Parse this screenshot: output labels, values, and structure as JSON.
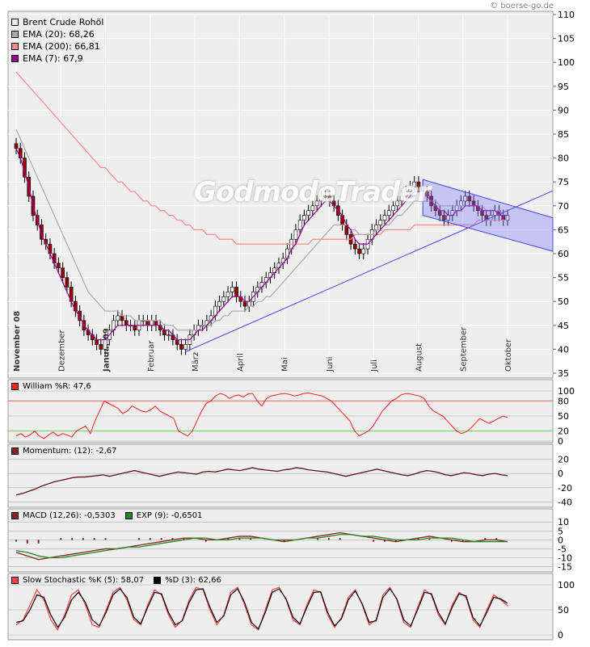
{
  "copyright": "© boerse-go.de",
  "watermark": "GodmodeTrader",
  "legend": {
    "instrument": {
      "label": "Brent Crude Rohöl",
      "color": "#eeeeee"
    },
    "ema20": {
      "label": "EMA (20): 68,26",
      "color": "#aaaaaa"
    },
    "ema200": {
      "label": "EMA (200): 66,81",
      "color": "#ff8888"
    },
    "ema7": {
      "label": "EMA (7): 67,9",
      "color": "#990099"
    }
  },
  "panels": {
    "williams": {
      "label": "William %R: 47,6",
      "color": "#ff2222"
    },
    "momentum": {
      "label": "Momentum: (12): -2,67",
      "color": "#882222"
    },
    "macd": {
      "label": "MACD (12,26): -0,5303",
      "color": "#882222"
    },
    "exp": {
      "label": "EXP (9): -0,6501",
      "color": "#228822"
    },
    "stoch_k": {
      "label": "Slow Stochastic %K (5): 58,07",
      "color": "#ff4444"
    },
    "stoch_d": {
      "label": "%D (3): 62,66",
      "color": "#000000"
    }
  },
  "chart_data": [
    {
      "type": "candlestick",
      "title": "Brent Crude Rohöl",
      "x_labels": [
        "November 08",
        "Dezember",
        "Januar 09",
        "Februar",
        "März",
        "April",
        "Mai",
        "Juni",
        "Juli",
        "August",
        "September",
        "Oktober"
      ],
      "x_label_index": [
        0,
        12,
        24,
        36,
        48,
        60,
        72,
        84,
        96,
        108,
        120,
        132
      ],
      "yticks": [
        35,
        40,
        45,
        50,
        55,
        60,
        65,
        70,
        75,
        80,
        85,
        90,
        95,
        100,
        105,
        110
      ],
      "ylim": [
        35,
        110
      ],
      "close": [
        82,
        80,
        76,
        72,
        68,
        66,
        63,
        62,
        60,
        58,
        57,
        55,
        53,
        50,
        48,
        46,
        44,
        43,
        42,
        41,
        40,
        42,
        44,
        46,
        47,
        46,
        45,
        45,
        44,
        46,
        46,
        45,
        46,
        45,
        44,
        43,
        43,
        42,
        41,
        40,
        41,
        43,
        44,
        45,
        45,
        46,
        47,
        49,
        50,
        51,
        52,
        53,
        51,
        50,
        49,
        50,
        52,
        53,
        54,
        55,
        56,
        57,
        58,
        59,
        61,
        63,
        65,
        67,
        68,
        69,
        70,
        71,
        72,
        72,
        71,
        70,
        68,
        66,
        64,
        62,
        61,
        60,
        61,
        63,
        65,
        66,
        67,
        68,
        69,
        70,
        71,
        72,
        73,
        74,
        75,
        74,
        73,
        72,
        70,
        69,
        68,
        67,
        68,
        69,
        70,
        71,
        72,
        71,
        70,
        69,
        68,
        67,
        68,
        69,
        68,
        67,
        68
      ],
      "ema20": [
        86,
        84,
        82,
        80,
        78,
        76,
        74,
        72,
        70,
        68,
        66,
        64,
        62,
        60,
        58,
        56,
        54,
        52,
        51,
        50,
        49,
        48,
        48,
        48,
        48,
        47,
        47,
        47,
        46,
        46,
        46,
        46,
        46,
        46,
        46,
        45,
        45,
        45,
        44,
        44,
        44,
        44,
        44,
        44,
        45,
        45,
        45,
        46,
        46,
        47,
        47,
        48,
        48,
        48,
        48,
        49,
        49,
        50,
        50,
        51,
        51,
        52,
        53,
        54,
        55,
        56,
        57,
        58,
        59,
        60,
        61,
        62,
        63,
        64,
        65,
        66,
        66,
        66,
        66,
        65,
        65,
        64,
        64,
        64,
        64,
        65,
        65,
        66,
        66,
        67,
        68,
        68,
        69,
        70,
        71,
        71,
        71,
        71,
        71,
        71,
        70,
        70,
        70,
        70,
        70,
        70,
        70,
        70,
        70,
        70,
        70,
        69,
        69,
        69,
        69,
        68,
        68
      ],
      "ema200": [
        98,
        97,
        96,
        95,
        94,
        93,
        92,
        91,
        90,
        89,
        88,
        87,
        86,
        85,
        84,
        83,
        82,
        81,
        80,
        79,
        78,
        78,
        77,
        76,
        75,
        75,
        74,
        73,
        73,
        72,
        71,
        71,
        70,
        70,
        69,
        69,
        68,
        68,
        67,
        67,
        66,
        66,
        65,
        65,
        65,
        64,
        64,
        64,
        63,
        63,
        63,
        63,
        62,
        62,
        62,
        62,
        62,
        62,
        62,
        62,
        62,
        62,
        62,
        62,
        62,
        62,
        62,
        62,
        62,
        62,
        63,
        63,
        63,
        63,
        63,
        63,
        63,
        63,
        63,
        63,
        64,
        64,
        64,
        64,
        64,
        64,
        64,
        65,
        65,
        65,
        65,
        65,
        65,
        65,
        66,
        66,
        66,
        66,
        66,
        66,
        66,
        66,
        66,
        66,
        66,
        66,
        66,
        66,
        66,
        67,
        67,
        67,
        67,
        67,
        67,
        67,
        67
      ],
      "ema7": [
        82,
        80,
        77,
        74,
        70,
        67,
        64,
        62,
        60,
        58,
        56,
        54,
        52,
        50,
        48,
        47,
        45,
        44,
        43,
        42,
        42,
        42,
        43,
        44,
        45,
        45,
        45,
        45,
        45,
        45,
        45,
        45,
        45,
        45,
        45,
        44,
        44,
        43,
        42,
        42,
        42,
        42,
        43,
        44,
        44,
        45,
        46,
        47,
        48,
        49,
        50,
        51,
        51,
        51,
        50,
        50,
        51,
        52,
        53,
        54,
        55,
        56,
        57,
        58,
        59,
        61,
        62,
        64,
        66,
        67,
        68,
        69,
        70,
        71,
        71,
        70,
        69,
        68,
        66,
        65,
        63,
        62,
        62,
        62,
        63,
        64,
        65,
        66,
        67,
        68,
        69,
        70,
        71,
        72,
        73,
        73,
        73,
        72,
        71,
        70,
        69,
        69,
        68,
        68,
        69,
        69,
        70,
        70,
        70,
        70,
        69,
        69,
        69,
        69,
        68,
        68,
        68
      ]
    },
    {
      "type": "line",
      "name": "William %R",
      "yticks": [
        0,
        20,
        50,
        80,
        100
      ],
      "ylim": [
        0,
        100
      ],
      "values": [
        10,
        15,
        8,
        12,
        20,
        10,
        5,
        12,
        18,
        10,
        15,
        12,
        8,
        20,
        25,
        30,
        15,
        40,
        60,
        80,
        75,
        70,
        65,
        55,
        60,
        70,
        65,
        60,
        58,
        62,
        70,
        60,
        55,
        50,
        45,
        20,
        15,
        10,
        20,
        40,
        60,
        75,
        80,
        90,
        95,
        92,
        85,
        90,
        92,
        88,
        94,
        95,
        80,
        70,
        85,
        90,
        92,
        94,
        95,
        93,
        90,
        92,
        95,
        96,
        94,
        92,
        90,
        85,
        80,
        70,
        60,
        50,
        40,
        20,
        10,
        15,
        20,
        30,
        45,
        60,
        70,
        80,
        85,
        92,
        95,
        94,
        92,
        90,
        85,
        70,
        60,
        55,
        50,
        40,
        30,
        20,
        15,
        18,
        25,
        35,
        45,
        40,
        35,
        40,
        45,
        50,
        47
      ]
    },
    {
      "type": "line",
      "name": "Momentum",
      "yticks": [
        -40,
        -20,
        0,
        20
      ],
      "ylim": [
        -45,
        25
      ],
      "values": [
        -30,
        -28,
        -25,
        -22,
        -18,
        -15,
        -12,
        -10,
        -8,
        -6,
        -5,
        -5,
        -4,
        -3,
        -2,
        -4,
        -2,
        0,
        2,
        4,
        2,
        0,
        -2,
        -4,
        -2,
        0,
        2,
        1,
        0,
        -1,
        2,
        3,
        2,
        4,
        6,
        5,
        4,
        6,
        8,
        6,
        5,
        4,
        3,
        5,
        6,
        8,
        7,
        5,
        4,
        3,
        2,
        0,
        -2,
        -4,
        -2,
        0,
        2,
        4,
        6,
        4,
        2,
        0,
        -2,
        -3,
        -1,
        2,
        4,
        3,
        1,
        -2,
        -3,
        -1,
        1,
        0,
        -2,
        -3,
        -1,
        0,
        -2,
        -3
      ]
    },
    {
      "type": "bar+line",
      "name": "MACD",
      "yticks": [
        -15,
        -10,
        -5,
        0,
        5,
        10
      ],
      "ylim": [
        -17,
        11
      ],
      "macd": [
        -7,
        -9,
        -11,
        -10,
        -9,
        -8,
        -7,
        -6,
        -5,
        -5,
        -4,
        -3,
        -2,
        -1,
        0,
        1,
        1,
        0,
        0,
        1,
        2,
        2,
        1,
        0,
        -1,
        0,
        1,
        2,
        3,
        4,
        3,
        2,
        1,
        0,
        -1,
        0,
        1,
        2,
        1,
        0,
        -1,
        -1,
        0,
        0,
        -1
      ],
      "signal": [
        -6,
        -7,
        -9,
        -10,
        -10,
        -9,
        -8,
        -7,
        -6,
        -5,
        -4,
        -4,
        -3,
        -2,
        -1,
        0,
        1,
        1,
        0,
        0,
        1,
        1,
        1,
        0,
        0,
        0,
        1,
        1,
        2,
        3,
        3,
        2,
        2,
        1,
        0,
        0,
        0,
        1,
        1,
        1,
        0,
        -1,
        -1,
        -1,
        -1
      ]
    },
    {
      "type": "line",
      "name": "Slow Stochastic",
      "yticks": [
        0,
        50,
        100
      ],
      "ylim": [
        0,
        100
      ],
      "k": [
        20,
        30,
        60,
        90,
        70,
        30,
        10,
        40,
        80,
        90,
        60,
        20,
        15,
        50,
        85,
        95,
        70,
        30,
        20,
        60,
        90,
        80,
        40,
        15,
        30,
        70,
        95,
        90,
        50,
        20,
        40,
        85,
        95,
        60,
        20,
        10,
        50,
        90,
        95,
        70,
        30,
        20,
        60,
        90,
        85,
        40,
        15,
        35,
        75,
        90,
        60,
        20,
        30,
        80,
        95,
        70,
        25,
        15,
        55,
        90,
        80,
        40,
        20,
        60,
        85,
        75,
        30,
        15,
        50,
        80,
        70,
        58
      ],
      "d": [
        25,
        28,
        50,
        80,
        75,
        40,
        15,
        35,
        70,
        85,
        65,
        30,
        18,
        45,
        80,
        92,
        75,
        35,
        22,
        55,
        85,
        82,
        45,
        20,
        28,
        65,
        90,
        92,
        55,
        25,
        38,
        80,
        92,
        65,
        25,
        12,
        45,
        85,
        92,
        72,
        35,
        22,
        55,
        85,
        86,
        45,
        18,
        32,
        70,
        88,
        62,
        25,
        28,
        75,
        92,
        72,
        30,
        18,
        50,
        85,
        82,
        45,
        22,
        55,
        82,
        78,
        35,
        18,
        45,
        75,
        72,
        63
      ]
    }
  ]
}
